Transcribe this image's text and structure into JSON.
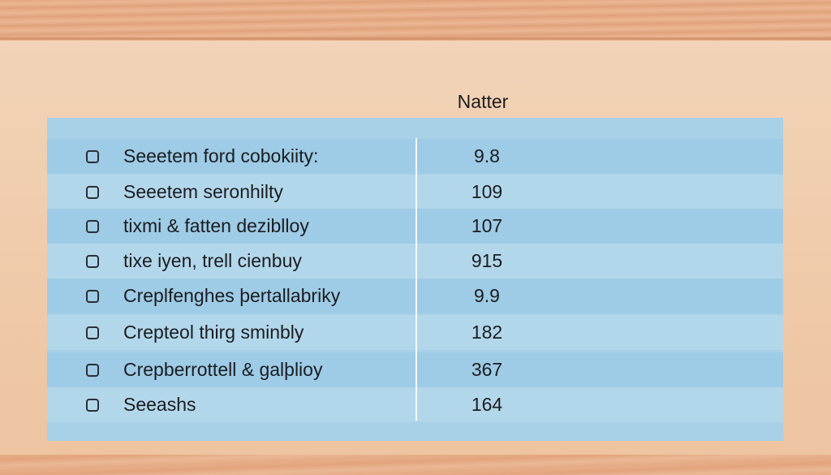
{
  "header": {
    "title": "Natter"
  },
  "table": {
    "rows": [
      [
        "Seeetem ford cobokiity:",
        "9.8"
      ],
      [
        "Seeetem seronhilty",
        "109"
      ],
      [
        "tixmi & fatten deziblloy",
        "107"
      ],
      [
        "tixe iyen, trell cienbuy",
        "915"
      ],
      [
        "Creplfenghes þertallabriky",
        "9.9"
      ],
      [
        "Crepteol thirg sminbly",
        "182"
      ],
      [
        "Crepberrottell & galþlioy",
        "367"
      ],
      [
        "Seeashs",
        "164"
      ]
    ]
  }
}
